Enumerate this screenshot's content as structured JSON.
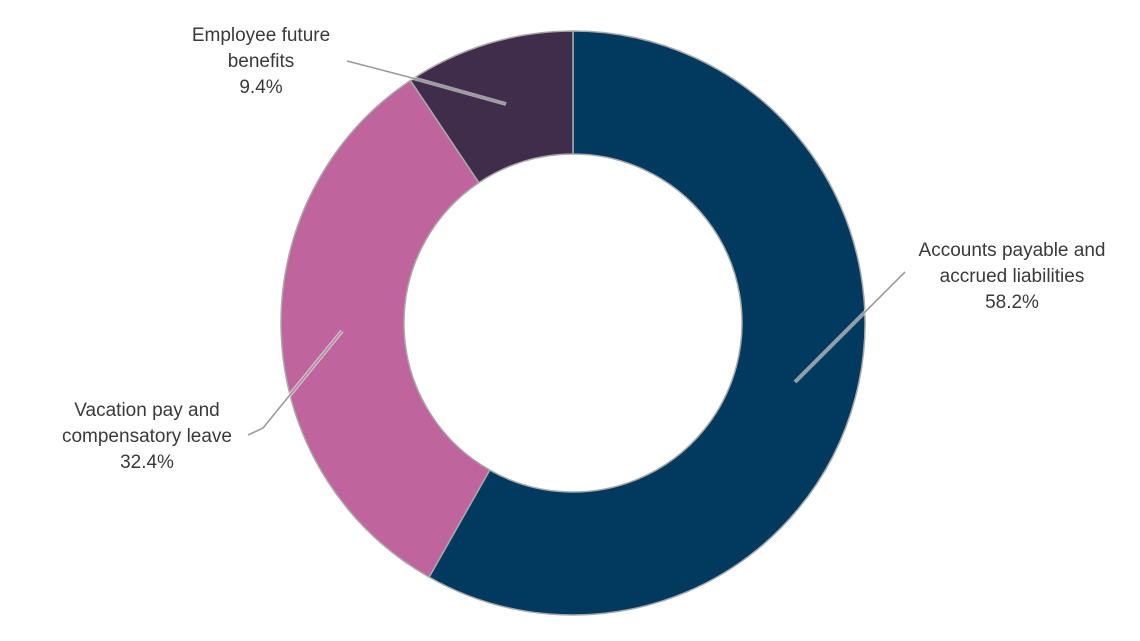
{
  "chart_data": {
    "type": "pie",
    "variant": "donut",
    "title": "",
    "legend": "none",
    "slices": [
      {
        "name": "Accounts payable and accrued liabilities",
        "label_lines": [
          "Accounts payable and",
          "accrued liabilities"
        ],
        "value": 58.2,
        "value_label": "58.2%",
        "color": "#013a5e"
      },
      {
        "name": "Vacation pay and compensatory leave",
        "label_lines": [
          "Vacation pay and",
          "compensatory leave"
        ],
        "value": 32.4,
        "value_label": "32.4%",
        "color": "#bf649c"
      },
      {
        "name": "Employee future benefits",
        "label_lines": [
          "Employee future",
          "benefits"
        ],
        "value": 9.4,
        "value_label": "9.4%",
        "color": "#3f2d4b"
      }
    ],
    "start_angle_deg": 0,
    "direction": "clockwise"
  }
}
